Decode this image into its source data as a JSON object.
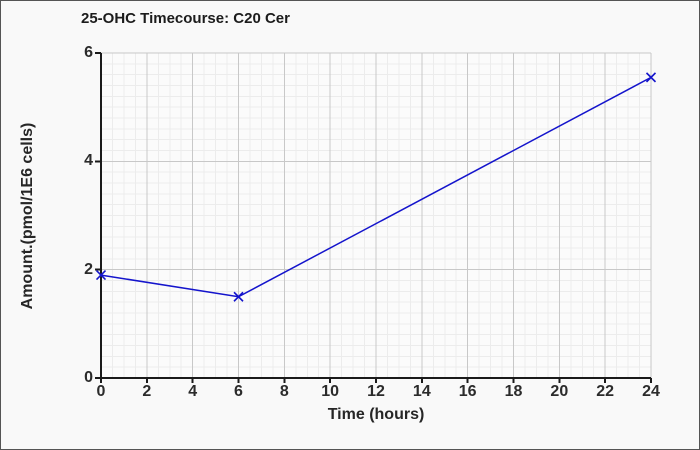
{
  "window": {
    "background": "#f9f9f9",
    "plot_background": "#fbfbfb",
    "border_color": "#555555"
  },
  "chart_data": {
    "type": "line",
    "title": "25-OHC Timecourse: C20 Cer",
    "xlabel": "Time (hours)",
    "ylabel": "Amount.(pmol/1E6 cells)",
    "x": [
      0,
      6,
      24
    ],
    "y": [
      1.9,
      1.5,
      5.55
    ],
    "xlim": [
      0,
      24
    ],
    "ylim": [
      0,
      6
    ],
    "x_ticks": [
      0,
      2,
      4,
      6,
      8,
      10,
      12,
      14,
      16,
      18,
      20,
      22,
      24
    ],
    "y_ticks": [
      0,
      2,
      4,
      6
    ],
    "x_minor_step": 0.5,
    "y_minor_step": 0.2,
    "grid": "major+minor",
    "legend_position": "none",
    "marker": "x",
    "colors": {
      "line": "#1414cc",
      "axis": "#1a1a1a",
      "grid_major": "#c8c8c8",
      "grid_minor": "#ececec",
      "text": "#262626"
    }
  }
}
